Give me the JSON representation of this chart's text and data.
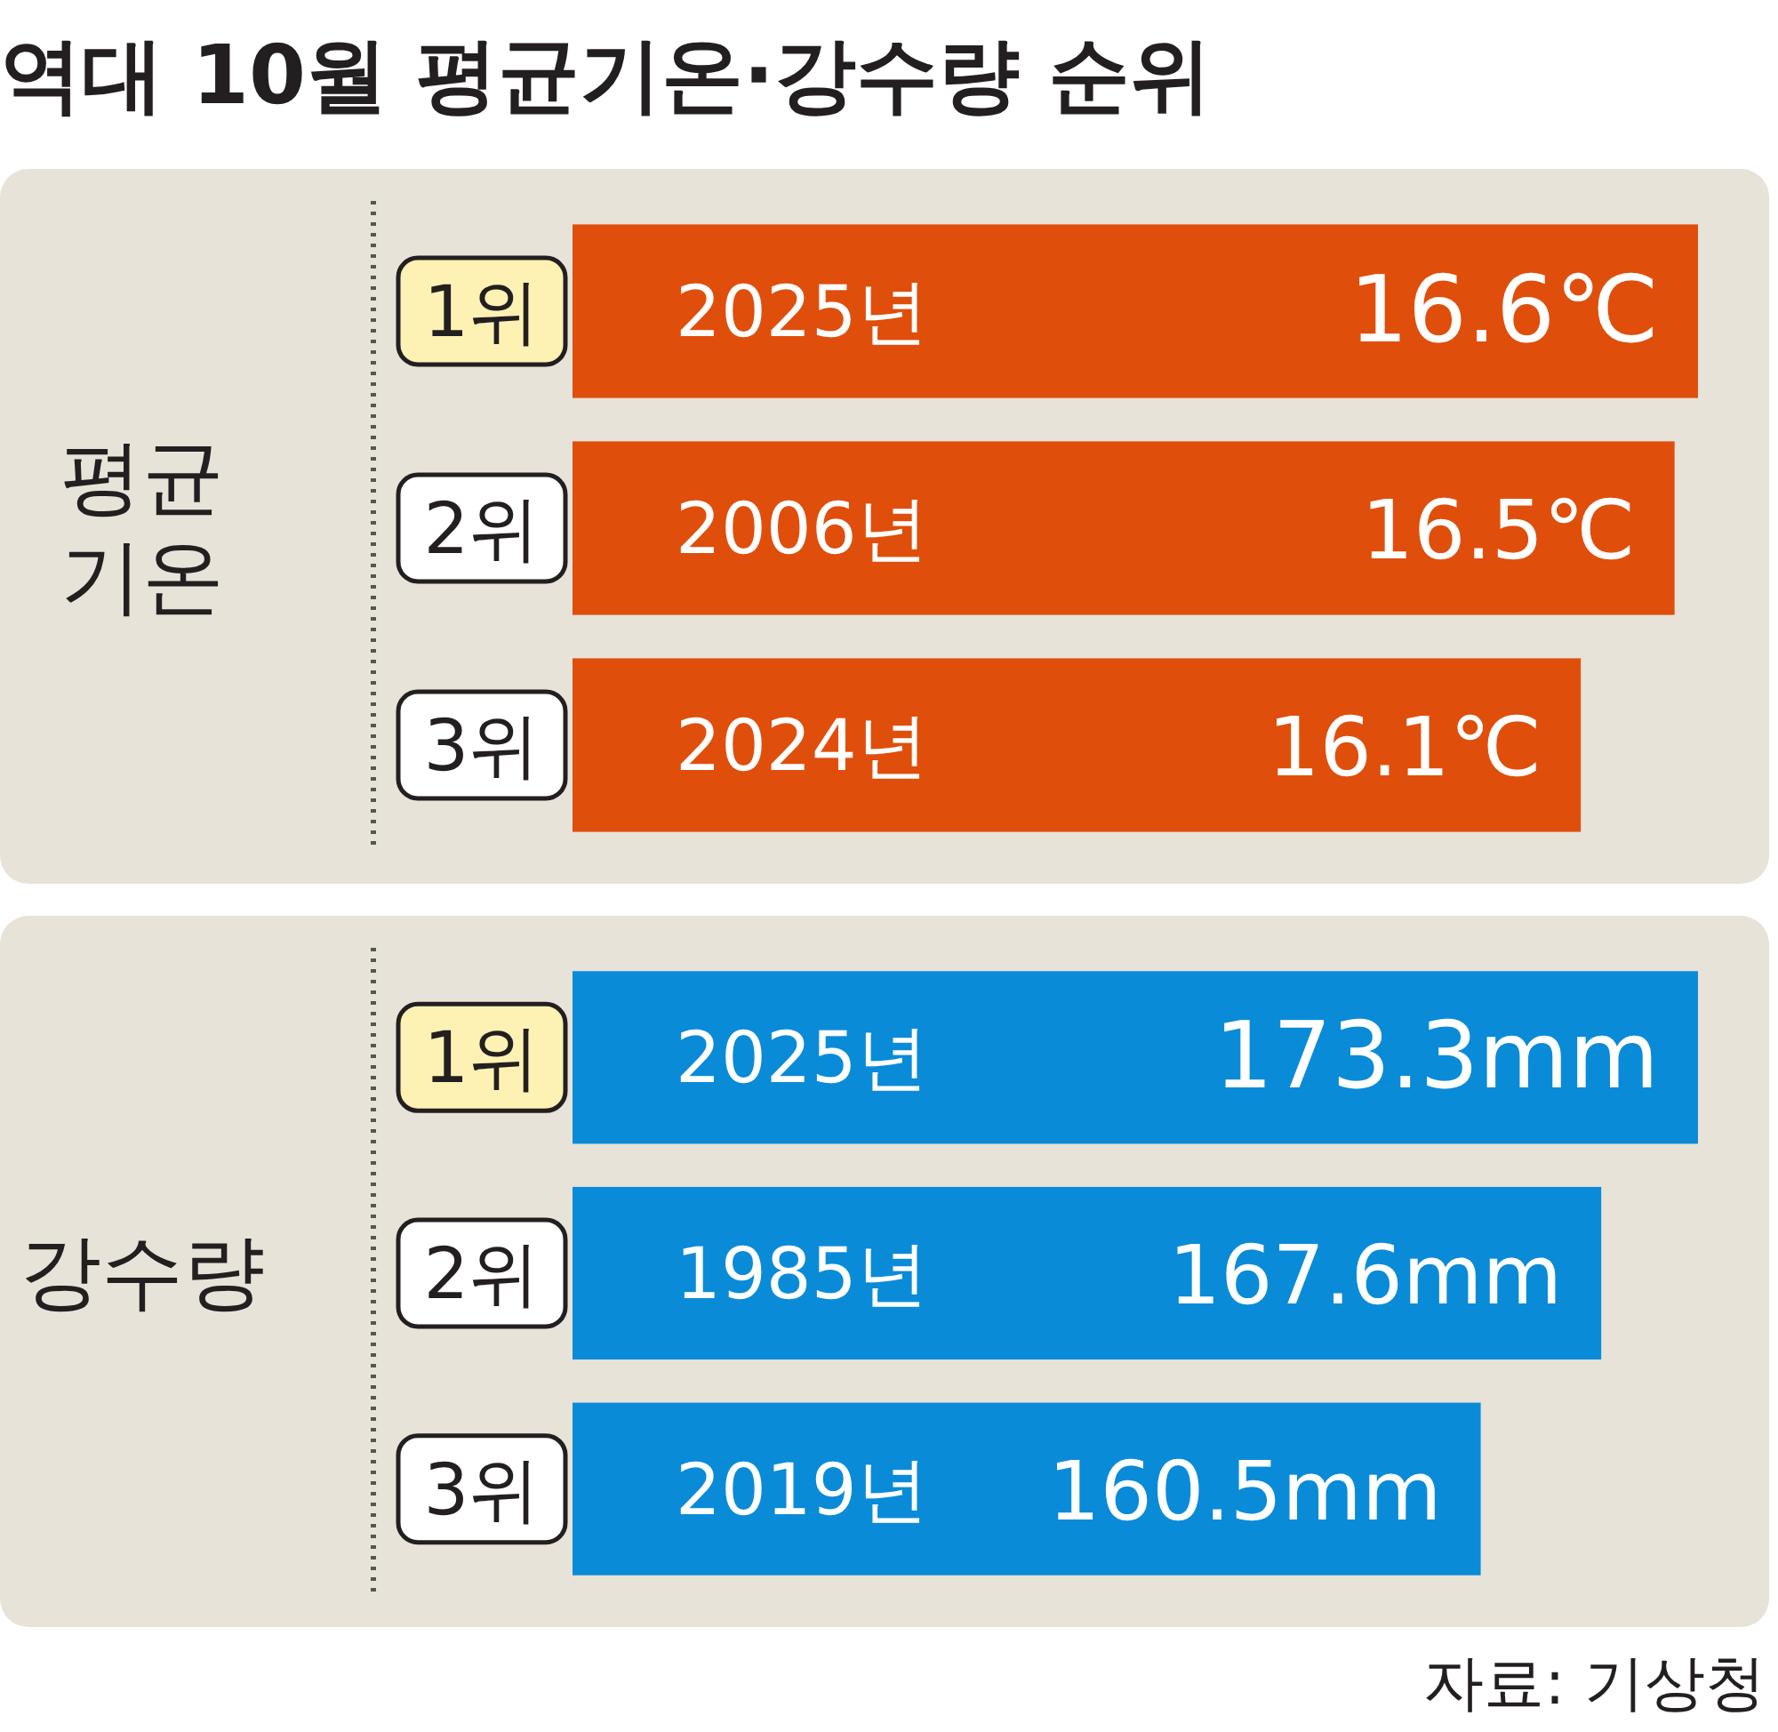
{
  "chart_data": [
    {
      "type": "bar",
      "orientation": "horizontal",
      "title": "역대 10월 평균기온·강수량 순위",
      "ylabel": "평균 기온",
      "categories": [
        "2025년",
        "2006년",
        "2024년"
      ],
      "values": [
        16.6,
        16.5,
        16.1
      ],
      "value_labels": [
        "16.6℃",
        "16.5℃",
        "16.1℃"
      ],
      "color": "#e04e0c",
      "xlim": [
        11.8,
        16.6
      ],
      "tick_labels": false,
      "annotations": [
        "1위",
        "2위",
        "3위"
      ]
    },
    {
      "type": "bar",
      "orientation": "horizontal",
      "ylabel": "강수량",
      "categories": [
        "2025년",
        "1985년",
        "2019년"
      ],
      "values": [
        173.3,
        167.6,
        160.5
      ],
      "value_labels": [
        "173.3mm",
        "167.6mm",
        "160.5mm"
      ],
      "color": "#0a8bd8",
      "xlim": [
        107,
        173.3
      ],
      "tick_labels": false,
      "annotations": [
        "1위",
        "2위",
        "3위",
        "자료: 기상청"
      ]
    }
  ]
}
